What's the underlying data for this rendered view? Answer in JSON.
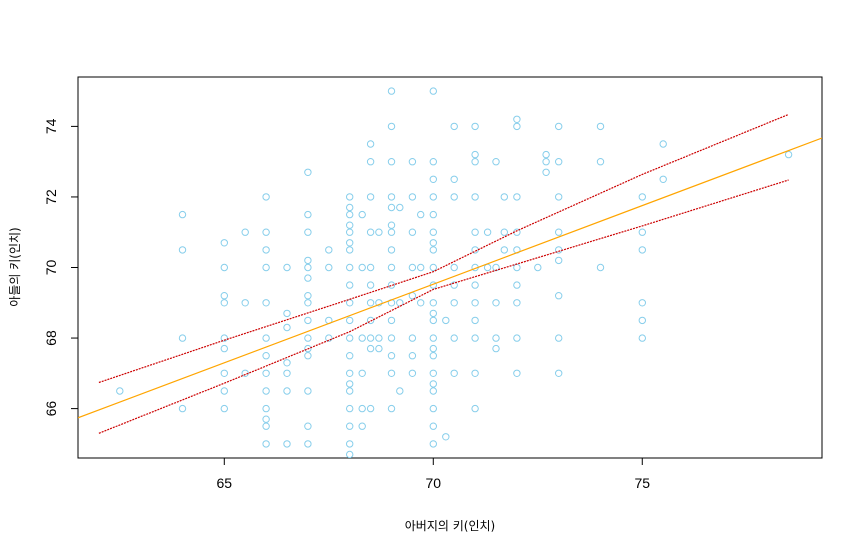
{
  "chart_data": {
    "type": "scatter",
    "xlabel": "아버지의 키(인치)",
    "ylabel": "아들의 키(인치)",
    "xlim": [
      61.5,
      79.3
    ],
    "ylim": [
      64.6,
      75.4
    ],
    "xticks": [
      65,
      70,
      75
    ],
    "yticks": [
      66,
      68,
      70,
      72,
      74
    ],
    "grid": false,
    "colors": {
      "points": "#87ceeb",
      "fit": "#ffa500",
      "band": "#cc0000"
    },
    "points": [
      [
        62.5,
        66.5
      ],
      [
        64,
        71.5
      ],
      [
        64,
        70.5
      ],
      [
        64,
        68
      ],
      [
        64,
        66
      ],
      [
        65,
        70.7
      ],
      [
        65,
        70
      ],
      [
        65,
        69.2
      ],
      [
        65,
        69
      ],
      [
        65,
        68
      ],
      [
        65,
        67.7
      ],
      [
        65,
        67
      ],
      [
        65,
        66.5
      ],
      [
        65,
        66
      ],
      [
        65.5,
        71
      ],
      [
        65.5,
        69
      ],
      [
        65.5,
        67
      ],
      [
        66,
        72
      ],
      [
        66,
        71
      ],
      [
        66,
        70.5
      ],
      [
        66,
        70
      ],
      [
        66,
        69
      ],
      [
        66,
        68
      ],
      [
        66,
        67.5
      ],
      [
        66,
        67
      ],
      [
        66,
        66.5
      ],
      [
        66,
        66
      ],
      [
        66,
        65.7
      ],
      [
        66,
        65.5
      ],
      [
        66,
        65
      ],
      [
        66.5,
        70
      ],
      [
        66.5,
        68.7
      ],
      [
        66.5,
        68.3
      ],
      [
        66.5,
        67.3
      ],
      [
        66.5,
        67
      ],
      [
        66.5,
        66.5
      ],
      [
        66.5,
        65
      ],
      [
        67,
        72.7
      ],
      [
        67,
        71.5
      ],
      [
        67,
        71
      ],
      [
        67,
        70.2
      ],
      [
        67,
        70
      ],
      [
        67,
        69.7
      ],
      [
        67,
        69.2
      ],
      [
        67,
        69
      ],
      [
        67,
        68.5
      ],
      [
        67,
        68
      ],
      [
        67,
        67.7
      ],
      [
        67,
        67.5
      ],
      [
        67,
        66.5
      ],
      [
        67,
        65.5
      ],
      [
        67,
        65
      ],
      [
        67.5,
        70.5
      ],
      [
        67.5,
        70
      ],
      [
        67.5,
        68.5
      ],
      [
        67.5,
        68
      ],
      [
        68,
        72
      ],
      [
        68,
        71.7
      ],
      [
        68,
        71.5
      ],
      [
        68,
        71.2
      ],
      [
        68,
        71
      ],
      [
        68,
        70.7
      ],
      [
        68,
        70.5
      ],
      [
        68,
        70
      ],
      [
        68,
        69.5
      ],
      [
        68,
        69
      ],
      [
        68,
        68.5
      ],
      [
        68,
        68
      ],
      [
        68,
        67.5
      ],
      [
        68,
        67
      ],
      [
        68,
        66.7
      ],
      [
        68,
        66.5
      ],
      [
        68,
        66
      ],
      [
        68,
        65.5
      ],
      [
        68,
        65
      ],
      [
        68,
        64.7
      ],
      [
        68.3,
        71.5
      ],
      [
        68.3,
        70
      ],
      [
        68.3,
        68
      ],
      [
        68.3,
        67
      ],
      [
        68.3,
        66
      ],
      [
        68.3,
        65.5
      ],
      [
        68.5,
        73.5
      ],
      [
        68.5,
        73
      ],
      [
        68.5,
        72
      ],
      [
        68.5,
        71
      ],
      [
        68.5,
        70
      ],
      [
        68.5,
        69.5
      ],
      [
        68.5,
        69
      ],
      [
        68.5,
        68.5
      ],
      [
        68.5,
        68
      ],
      [
        68.5,
        67.7
      ],
      [
        68.5,
        66
      ],
      [
        68.7,
        71
      ],
      [
        68.7,
        69
      ],
      [
        68.7,
        68
      ],
      [
        68.7,
        67.7
      ],
      [
        69,
        75
      ],
      [
        69,
        74
      ],
      [
        69,
        73
      ],
      [
        69,
        72
      ],
      [
        69,
        71.7
      ],
      [
        69,
        71.2
      ],
      [
        69,
        71
      ],
      [
        69,
        70.5
      ],
      [
        69,
        70
      ],
      [
        69,
        69.5
      ],
      [
        69,
        69
      ],
      [
        69,
        68.5
      ],
      [
        69,
        68
      ],
      [
        69,
        67.5
      ],
      [
        69,
        67
      ],
      [
        69,
        66
      ],
      [
        69.2,
        71.7
      ],
      [
        69.2,
        69
      ],
      [
        69.2,
        66.5
      ],
      [
        69.5,
        73
      ],
      [
        69.5,
        72
      ],
      [
        69.5,
        71
      ],
      [
        69.5,
        70
      ],
      [
        69.5,
        69.2
      ],
      [
        69.5,
        68
      ],
      [
        69.5,
        67.5
      ],
      [
        69.5,
        67
      ],
      [
        69.7,
        71.5
      ],
      [
        69.7,
        70
      ],
      [
        69.7,
        69
      ],
      [
        70,
        75
      ],
      [
        70,
        73
      ],
      [
        70,
        72.5
      ],
      [
        70,
        72
      ],
      [
        70,
        71.5
      ],
      [
        70,
        71
      ],
      [
        70,
        70.7
      ],
      [
        70,
        70.5
      ],
      [
        70,
        70
      ],
      [
        70,
        69.5
      ],
      [
        70,
        69
      ],
      [
        70,
        68.7
      ],
      [
        70,
        68.5
      ],
      [
        70,
        68
      ],
      [
        70,
        67.7
      ],
      [
        70,
        67.5
      ],
      [
        70,
        67
      ],
      [
        70,
        66.7
      ],
      [
        70,
        66.5
      ],
      [
        70,
        66
      ],
      [
        70,
        65.5
      ],
      [
        70,
        65
      ],
      [
        70.3,
        68.5
      ],
      [
        70.3,
        65.2
      ],
      [
        70.5,
        74
      ],
      [
        70.5,
        72.5
      ],
      [
        70.5,
        72
      ],
      [
        70.5,
        70
      ],
      [
        70.5,
        69.5
      ],
      [
        70.5,
        69
      ],
      [
        70.5,
        68
      ],
      [
        70.5,
        67
      ],
      [
        71,
        74
      ],
      [
        71,
        73.2
      ],
      [
        71,
        73
      ],
      [
        71,
        72
      ],
      [
        71,
        71
      ],
      [
        71,
        70.5
      ],
      [
        71,
        70
      ],
      [
        71,
        69.5
      ],
      [
        71,
        69
      ],
      [
        71,
        68.5
      ],
      [
        71,
        68
      ],
      [
        71,
        67
      ],
      [
        71,
        66
      ],
      [
        71.3,
        71
      ],
      [
        71.3,
        70
      ],
      [
        71.5,
        73
      ],
      [
        71.5,
        70
      ],
      [
        71.5,
        69
      ],
      [
        71.5,
        68
      ],
      [
        71.5,
        67.7
      ],
      [
        71.7,
        72
      ],
      [
        71.7,
        71
      ],
      [
        71.7,
        70.5
      ],
      [
        72,
        74.2
      ],
      [
        72,
        74
      ],
      [
        72,
        72
      ],
      [
        72,
        71
      ],
      [
        72,
        70.5
      ],
      [
        72,
        70
      ],
      [
        72,
        69.5
      ],
      [
        72,
        69
      ],
      [
        72,
        68
      ],
      [
        72,
        67
      ],
      [
        72.5,
        70
      ],
      [
        72.7,
        73.2
      ],
      [
        72.7,
        73
      ],
      [
        72.7,
        72.7
      ],
      [
        73,
        74
      ],
      [
        73,
        73
      ],
      [
        73,
        72
      ],
      [
        73,
        71
      ],
      [
        73,
        70.5
      ],
      [
        73,
        70.2
      ],
      [
        73,
        69.2
      ],
      [
        73,
        68
      ],
      [
        73,
        67
      ],
      [
        74,
        74
      ],
      [
        74,
        73
      ],
      [
        74,
        70
      ],
      [
        75,
        72
      ],
      [
        75,
        71
      ],
      [
        75,
        70.5
      ],
      [
        75,
        69
      ],
      [
        75,
        68.5
      ],
      [
        75,
        68
      ],
      [
        75.5,
        73.5
      ],
      [
        75.5,
        72.5
      ],
      [
        78.5,
        73.2
      ]
    ],
    "fit_line": [
      [
        61.5,
        65.74
      ],
      [
        79.3,
        73.67
      ]
    ],
    "upper_band": [
      [
        62,
        66.74
      ],
      [
        65,
        67.94
      ],
      [
        68,
        69.1
      ],
      [
        70,
        69.88
      ],
      [
        72,
        71.04
      ],
      [
        75,
        72.64
      ],
      [
        78.5,
        74.34
      ]
    ],
    "lower_band": [
      [
        62,
        65.3
      ],
      [
        65,
        66.72
      ],
      [
        68,
        68.18
      ],
      [
        70,
        69.38
      ],
      [
        72,
        70.1
      ],
      [
        75,
        71.18
      ],
      [
        78.5,
        72.48
      ]
    ]
  }
}
